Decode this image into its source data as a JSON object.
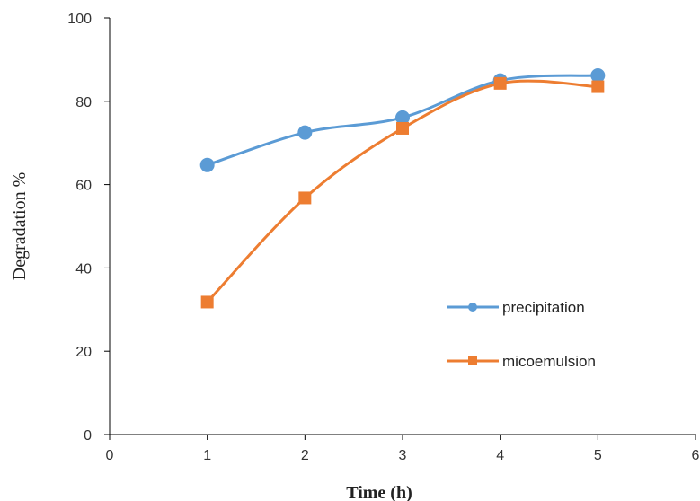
{
  "chart_data": {
    "type": "line",
    "title": "",
    "xlabel": "Time (h)",
    "ylabel": "Degradation %",
    "xlim": [
      0,
      6
    ],
    "ylim": [
      0,
      100
    ],
    "xticks": [
      0,
      1,
      2,
      3,
      4,
      5,
      6
    ],
    "yticks": [
      0,
      20,
      40,
      60,
      80,
      100
    ],
    "grid": false,
    "smooth": true,
    "legend_position": "right",
    "series": [
      {
        "name": "precipitation",
        "color": "#5B9BD5",
        "marker": "circle",
        "x": [
          1,
          2,
          3,
          4,
          5
        ],
        "y": [
          64.7,
          72.5,
          76.1,
          85.0,
          86.2
        ]
      },
      {
        "name": "micoemulsion",
        "color": "#ED7D31",
        "marker": "square",
        "x": [
          1,
          2,
          3,
          4,
          5
        ],
        "y": [
          31.8,
          56.8,
          73.5,
          84.3,
          83.5
        ]
      }
    ]
  }
}
